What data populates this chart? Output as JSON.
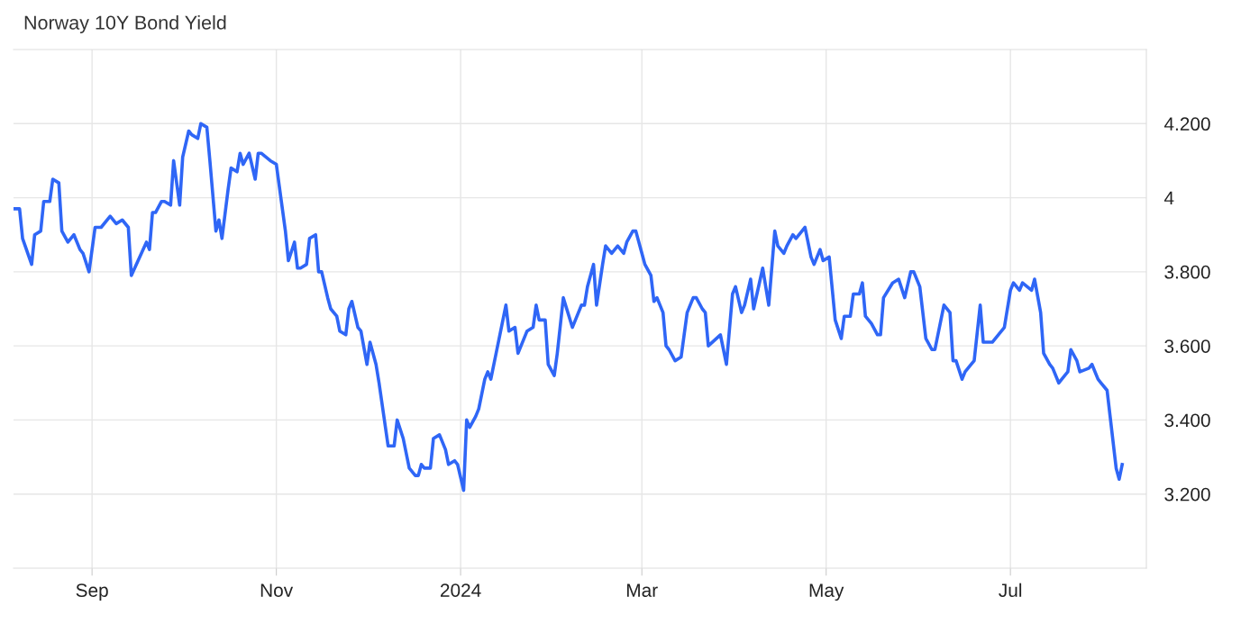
{
  "chart_data": {
    "type": "line",
    "title": "Norway 10Y Bond Yield",
    "x": [
      "2023-08-06",
      "2023-08-08",
      "2023-08-09",
      "2023-08-12",
      "2023-08-13",
      "2023-08-15",
      "2023-08-16",
      "2023-08-18",
      "2023-08-19",
      "2023-08-21",
      "2023-08-22",
      "2023-08-24",
      "2023-08-26",
      "2023-08-28",
      "2023-08-29",
      "2023-08-31",
      "2023-09-02",
      "2023-09-04",
      "2023-09-07",
      "2023-09-09",
      "2023-09-11",
      "2023-09-13",
      "2023-09-14",
      "2023-09-19",
      "2023-09-20",
      "2023-09-21",
      "2023-09-22",
      "2023-09-24",
      "2023-09-25",
      "2023-09-27",
      "2023-09-28",
      "2023-09-30",
      "2023-10-01",
      "2023-10-03",
      "2023-10-04",
      "2023-10-06",
      "2023-10-07",
      "2023-10-09",
      "2023-10-10",
      "2023-10-12",
      "2023-10-13",
      "2023-10-14",
      "2023-10-16",
      "2023-10-17",
      "2023-10-19",
      "2023-10-20",
      "2023-10-21",
      "2023-10-23",
      "2023-10-25",
      "2023-10-26",
      "2023-10-27",
      "2023-10-30",
      "2023-11-01",
      "2023-11-02",
      "2023-11-04",
      "2023-11-05",
      "2023-11-07",
      "2023-11-08",
      "2023-11-09",
      "2023-11-11",
      "2023-11-12",
      "2023-11-14",
      "2023-11-15",
      "2023-11-16",
      "2023-11-18",
      "2023-11-19",
      "2023-11-21",
      "2023-11-22",
      "2023-11-24",
      "2023-11-25",
      "2023-11-26",
      "2023-11-28",
      "2023-11-29",
      "2023-12-01",
      "2023-12-02",
      "2023-12-04",
      "2023-12-05",
      "2023-12-08",
      "2023-12-10",
      "2023-12-11",
      "2023-12-13",
      "2023-12-15",
      "2023-12-17",
      "2023-12-18",
      "2023-12-19",
      "2023-12-20",
      "2023-12-22",
      "2023-12-23",
      "2023-12-25",
      "2023-12-27",
      "2023-12-28",
      "2023-12-30",
      "2023-12-31",
      "2024-01-02",
      "2024-01-03",
      "2024-01-04",
      "2024-01-06",
      "2024-01-07",
      "2024-01-09",
      "2024-01-10",
      "2024-01-11",
      "2024-01-13",
      "2024-01-14",
      "2024-01-16",
      "2024-01-17",
      "2024-01-19",
      "2024-01-20",
      "2024-01-22",
      "2024-01-23",
      "2024-01-25",
      "2024-01-26",
      "2024-01-27",
      "2024-01-29",
      "2024-01-30",
      "2024-02-01",
      "2024-02-02",
      "2024-02-04",
      "2024-02-07",
      "2024-02-10",
      "2024-02-11",
      "2024-02-12",
      "2024-02-14",
      "2024-02-15",
      "2024-02-17",
      "2024-02-18",
      "2024-02-20",
      "2024-02-22",
      "2024-02-24",
      "2024-02-25",
      "2024-02-27",
      "2024-02-28",
      "2024-03-01",
      "2024-03-02",
      "2024-03-04",
      "2024-03-05",
      "2024-03-06",
      "2024-03-08",
      "2024-03-09",
      "2024-03-10",
      "2024-03-12",
      "2024-03-14",
      "2024-03-15",
      "2024-03-16",
      "2024-03-18",
      "2024-03-19",
      "2024-03-21",
      "2024-03-22",
      "2024-03-23",
      "2024-03-27",
      "2024-03-29",
      "2024-03-31",
      "2024-04-01",
      "2024-04-03",
      "2024-04-04",
      "2024-04-06",
      "2024-04-07",
      "2024-04-10",
      "2024-04-12",
      "2024-04-14",
      "2024-04-15",
      "2024-04-17",
      "2024-04-18",
      "2024-04-20",
      "2024-04-21",
      "2024-04-24",
      "2024-04-26",
      "2024-04-27",
      "2024-04-29",
      "2024-04-30",
      "2024-05-02",
      "2024-05-04",
      "2024-05-06",
      "2024-05-07",
      "2024-05-09",
      "2024-05-10",
      "2024-05-12",
      "2024-05-13",
      "2024-05-14",
      "2024-05-16",
      "2024-05-18",
      "2024-05-19",
      "2024-05-20",
      "2024-05-23",
      "2024-05-25",
      "2024-05-27",
      "2024-05-29",
      "2024-05-30",
      "2024-06-01",
      "2024-06-03",
      "2024-06-05",
      "2024-06-06",
      "2024-06-09",
      "2024-06-11",
      "2024-06-12",
      "2024-06-13",
      "2024-06-15",
      "2024-06-16",
      "2024-06-18",
      "2024-06-19",
      "2024-06-21",
      "2024-06-22",
      "2024-06-25",
      "2024-06-27",
      "2024-06-29",
      "2024-07-01",
      "2024-07-02",
      "2024-07-04",
      "2024-07-05",
      "2024-07-08",
      "2024-07-09",
      "2024-07-11",
      "2024-07-12",
      "2024-07-14",
      "2024-07-15",
      "2024-07-17",
      "2024-07-18",
      "2024-07-20",
      "2024-07-21",
      "2024-07-23",
      "2024-07-24",
      "2024-07-27",
      "2024-07-28",
      "2024-07-30",
      "2024-07-31",
      "2024-08-02",
      "2024-08-03",
      "2024-08-05",
      "2024-08-06",
      "2024-08-07"
    ],
    "series": [
      {
        "color": "#2f66f6",
        "values": [
          3.97,
          3.97,
          3.89,
          3.82,
          3.9,
          3.91,
          3.99,
          3.99,
          4.05,
          4.04,
          3.91,
          3.88,
          3.9,
          3.86,
          3.85,
          3.8,
          3.92,
          3.92,
          3.95,
          3.93,
          3.94,
          3.92,
          3.79,
          3.88,
          3.86,
          3.96,
          3.96,
          3.99,
          3.99,
          3.98,
          4.1,
          3.98,
          4.11,
          4.18,
          4.17,
          4.16,
          4.2,
          4.19,
          4.1,
          3.91,
          3.94,
          3.89,
          4.02,
          4.08,
          4.07,
          4.12,
          4.09,
          4.12,
          4.05,
          4.12,
          4.12,
          4.1,
          4.09,
          4.03,
          3.91,
          3.83,
          3.88,
          3.81,
          3.81,
          3.82,
          3.89,
          3.9,
          3.8,
          3.8,
          3.73,
          3.7,
          3.68,
          3.64,
          3.63,
          3.7,
          3.72,
          3.65,
          3.64,
          3.55,
          3.61,
          3.55,
          3.5,
          3.33,
          3.33,
          3.4,
          3.35,
          3.27,
          3.25,
          3.25,
          3.28,
          3.27,
          3.27,
          3.35,
          3.36,
          3.32,
          3.28,
          3.29,
          3.28,
          3.21,
          3.4,
          3.38,
          3.41,
          3.43,
          3.51,
          3.53,
          3.51,
          3.59,
          3.63,
          3.71,
          3.64,
          3.65,
          3.58,
          3.62,
          3.64,
          3.65,
          3.71,
          3.67,
          3.67,
          3.55,
          3.52,
          3.58,
          3.73,
          3.65,
          3.71,
          3.71,
          3.76,
          3.82,
          3.71,
          3.82,
          3.87,
          3.85,
          3.87,
          3.85,
          3.88,
          3.91,
          3.91,
          3.85,
          3.82,
          3.79,
          3.72,
          3.73,
          3.69,
          3.6,
          3.59,
          3.56,
          3.57,
          3.63,
          3.69,
          3.73,
          3.73,
          3.7,
          3.69,
          3.6,
          3.63,
          3.55,
          3.74,
          3.76,
          3.69,
          3.71,
          3.78,
          3.7,
          3.81,
          3.71,
          3.91,
          3.87,
          3.85,
          3.87,
          3.9,
          3.89,
          3.92,
          3.84,
          3.82,
          3.86,
          3.83,
          3.84,
          3.67,
          3.62,
          3.68,
          3.68,
          3.74,
          3.74,
          3.77,
          3.68,
          3.66,
          3.63,
          3.63,
          3.73,
          3.77,
          3.78,
          3.73,
          3.8,
          3.8,
          3.76,
          3.62,
          3.59,
          3.59,
          3.71,
          3.69,
          3.56,
          3.56,
          3.51,
          3.53,
          3.55,
          3.56,
          3.71,
          3.61,
          3.61,
          3.63,
          3.65,
          3.75,
          3.77,
          3.75,
          3.77,
          3.75,
          3.78,
          3.69,
          3.58,
          3.55,
          3.54,
          3.5,
          3.51,
          3.53,
          3.59,
          3.56,
          3.53,
          3.54,
          3.55,
          3.51,
          3.5,
          3.48,
          3.41,
          3.27,
          3.24,
          3.28
        ]
      }
    ],
    "xlim": [
      "2023-08-06",
      "2024-08-15"
    ],
    "xticks": [
      {
        "value": "2023-09-01",
        "label": "Sep"
      },
      {
        "value": "2023-11-01",
        "label": "Nov"
      },
      {
        "value": "2024-01-01",
        "label": "2024"
      },
      {
        "value": "2024-03-01",
        "label": "Mar"
      },
      {
        "value": "2024-05-01",
        "label": "May"
      },
      {
        "value": "2024-07-01",
        "label": "Jul"
      }
    ],
    "ylim": [
      3.0,
      4.4
    ],
    "yticks": [
      {
        "value": 3.2,
        "label": "3.200"
      },
      {
        "value": 3.4,
        "label": "3.400"
      },
      {
        "value": 3.6,
        "label": "3.600"
      },
      {
        "value": 3.8,
        "label": "3.800"
      },
      4,
      {
        "value": 4.2,
        "label": "4.200"
      }
    ],
    "grid": true,
    "marker": "none",
    "line_style": "solid"
  }
}
